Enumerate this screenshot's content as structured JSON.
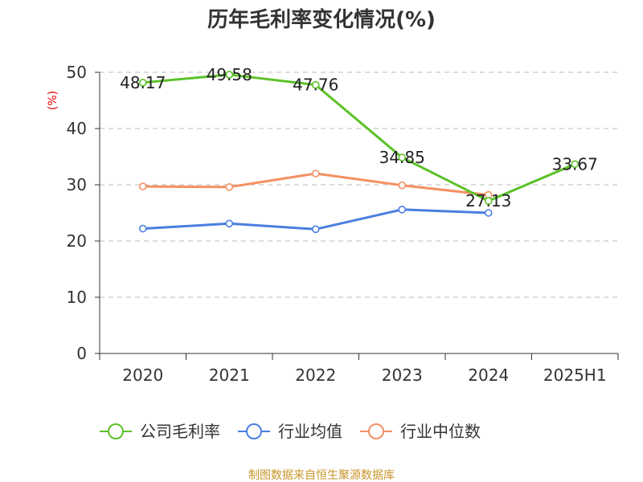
{
  "chart_data": {
    "type": "line",
    "title": "历年毛利率变化情况(%)",
    "ylabel": "(%)",
    "categories": [
      "2020",
      "2021",
      "2022",
      "2023",
      "2024",
      "2025H1"
    ],
    "ylim": [
      0,
      50
    ],
    "yticks": [
      0,
      10,
      20,
      30,
      40,
      50
    ],
    "grid": "horizontal dashed",
    "legend_position": "bottom",
    "series": [
      {
        "name": "公司毛利率",
        "color": "#5bc228",
        "values": [
          48.17,
          49.58,
          47.76,
          34.85,
          27.13,
          33.67
        ],
        "labels": [
          "48.17",
          "49.58",
          "47.76",
          "34.85",
          "27.13",
          "33.67"
        ]
      },
      {
        "name": "行业均值",
        "color": "#4a7fe0",
        "values": [
          22.2,
          23.1,
          22.1,
          25.6,
          25.0,
          null
        ]
      },
      {
        "name": "行业中位数",
        "color": "#f39062",
        "values": [
          29.7,
          29.6,
          32.0,
          29.9,
          28.2,
          null
        ]
      }
    ]
  },
  "footer": {
    "source": "制图数据来自恒生聚源数据库"
  }
}
